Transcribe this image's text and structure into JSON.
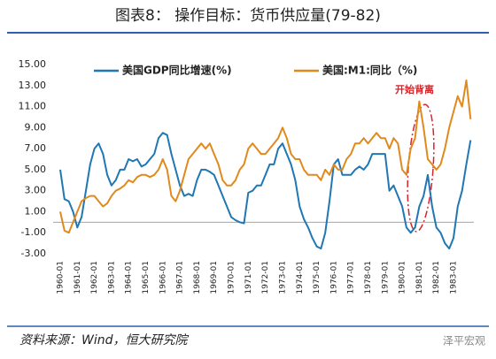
{
  "chart_data": {
    "type": "line",
    "title": "图表8：  操作目标：货币供应量(79-82)",
    "source": "资料来源：Wind，恒大研究院",
    "watermark": "泽平宏观",
    "annotation": "开始背离",
    "categories": [
      "1960-01",
      null,
      null,
      null,
      "1961-01",
      null,
      null,
      null,
      "1962-01",
      null,
      null,
      null,
      "1963-01",
      null,
      null,
      null,
      "1964-01",
      null,
      null,
      null,
      "1965-01",
      null,
      null,
      null,
      "1966-01",
      null,
      null,
      null,
      "1967-01",
      null,
      null,
      null,
      "1968-01",
      null,
      null,
      null,
      "1969-01",
      null,
      null,
      null,
      "1970-01",
      null,
      null,
      null,
      "1971-01",
      null,
      null,
      null,
      "1972-01",
      null,
      null,
      null,
      "1973-01",
      null,
      null,
      null,
      "1974-01",
      null,
      null,
      null,
      "1975-01",
      null,
      null,
      null,
      "1976-01",
      null,
      null,
      null,
      "1977-01",
      null,
      null,
      null,
      "1978-01",
      null,
      null,
      null,
      "1979-01",
      null,
      null,
      null,
      "1980-01",
      null,
      null,
      null,
      "1981-01",
      null,
      null,
      null,
      "1982-01",
      null,
      null,
      null,
      "1983-01",
      null,
      null,
      null,
      null
    ],
    "series": [
      {
        "name": "美国GDP同比增速(%)",
        "color": "#1f77b4",
        "values": [
          5.0,
          2.2,
          2.0,
          1.0,
          -0.5,
          0.5,
          3.0,
          5.5,
          7.0,
          7.5,
          6.5,
          4.5,
          3.5,
          4.0,
          5.0,
          5.0,
          6.0,
          5.8,
          6.0,
          5.3,
          5.5,
          6.0,
          6.5,
          8.0,
          8.5,
          8.3,
          6.5,
          5.0,
          3.5,
          2.5,
          2.7,
          2.5,
          4.0,
          5.0,
          5.0,
          4.8,
          4.5,
          3.5,
          2.5,
          1.5,
          0.5,
          0.2,
          0.0,
          -0.1,
          2.8,
          3.0,
          3.5,
          3.5,
          4.5,
          5.5,
          5.5,
          7.0,
          7.5,
          6.5,
          5.5,
          4.0,
          1.5,
          0.3,
          -0.5,
          -1.5,
          -2.3,
          -2.5,
          -1.0,
          2.0,
          5.5,
          6.0,
          4.5,
          4.5,
          4.5,
          5.0,
          5.3,
          5.0,
          5.5,
          6.5,
          6.5,
          6.5,
          6.5,
          3.0,
          3.5,
          2.5,
          1.5,
          -0.5,
          -1.0,
          -0.5,
          1.5,
          2.5,
          4.5,
          1.5,
          -0.5,
          -1.0,
          -2.0,
          -2.5,
          -1.5,
          1.5,
          3.0,
          5.5,
          7.8
        ]
      },
      {
        "name": "美国:M1:同比（%)",
        "color": "#e08a1e",
        "values": [
          1.0,
          -0.8,
          -1.0,
          0.0,
          1.0,
          2.0,
          2.3,
          2.5,
          2.5,
          2.0,
          1.5,
          1.8,
          2.5,
          3.0,
          3.2,
          3.5,
          4.0,
          3.8,
          4.3,
          4.5,
          4.5,
          4.3,
          4.5,
          5.0,
          6.0,
          5.0,
          2.5,
          2.0,
          3.0,
          4.5,
          6.0,
          6.5,
          7.0,
          7.5,
          7.0,
          7.5,
          6.5,
          5.5,
          4.0,
          3.5,
          3.5,
          4.0,
          5.0,
          5.5,
          7.0,
          7.5,
          7.0,
          6.5,
          6.5,
          7.0,
          7.5,
          8.0,
          9.0,
          8.0,
          6.5,
          6.0,
          6.0,
          5.0,
          4.5,
          4.5,
          4.5,
          4.0,
          5.0,
          4.5,
          5.5,
          5.0,
          5.0,
          6.0,
          6.5,
          7.5,
          7.5,
          8.0,
          7.5,
          8.0,
          8.5,
          8.0,
          8.0,
          7.0,
          8.0,
          7.5,
          5.0,
          4.5,
          7.0,
          8.0,
          11.5,
          9.0,
          6.0,
          5.5,
          5.0,
          5.5,
          7.0,
          9.0,
          10.5,
          12.0,
          11.0,
          13.5,
          9.8
        ]
      }
    ],
    "ylim": [
      -3,
      15
    ],
    "yticks": [
      {
        "value": 15,
        "label": "15.00"
      },
      {
        "value": 13,
        "label": "13.00"
      },
      {
        "value": 11,
        "label": "11.00"
      },
      {
        "value": 9,
        "label": "9.00"
      },
      {
        "value": 7,
        "label": "7.00"
      },
      {
        "value": 5,
        "label": "5.00"
      },
      {
        "value": 3,
        "label": "3.00"
      },
      {
        "value": 1,
        "label": "1.00"
      },
      {
        "value": -1,
        "label": "-1.00"
      },
      {
        "value": -3,
        "label": "-3.00"
      }
    ]
  }
}
